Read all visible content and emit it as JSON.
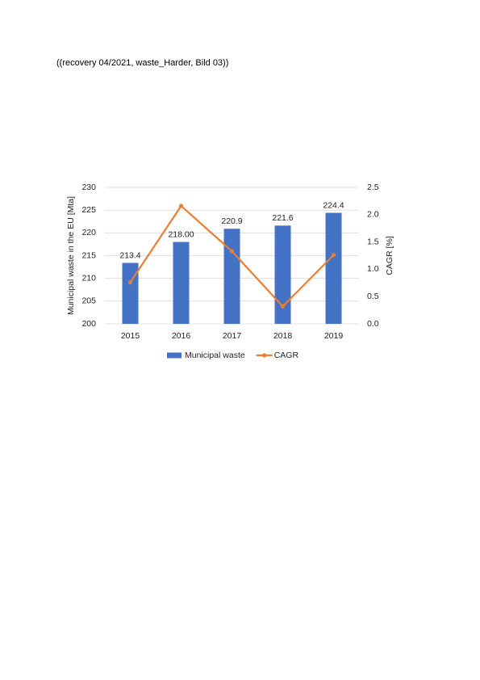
{
  "caption": "((recovery 04/2021, waste_Harder, Bild 03))",
  "chart_data": {
    "type": "combo",
    "y_label": "Municipal waste in the EU [Mta]",
    "y2_label": "CAGR [%]",
    "categories": [
      "2015",
      "2016",
      "2017",
      "2018",
      "2019"
    ],
    "series": [
      {
        "name": "Municipal waste",
        "type": "bar",
        "color": "#4472c4",
        "values": [
          213.4,
          218.0,
          220.9,
          221.6,
          224.4
        ],
        "value_labels": [
          "213.4",
          "218.00",
          "220.9",
          "221.6",
          "224.4"
        ]
      },
      {
        "name": "CAGR",
        "type": "line",
        "axis": "y2",
        "color": "#ed7d31",
        "values": [
          0.76,
          2.16,
          1.33,
          0.32,
          1.26
        ]
      }
    ],
    "ylim": [
      200,
      230
    ],
    "yticks": [
      200,
      205,
      210,
      215,
      220,
      225,
      230
    ],
    "y2lim": [
      0,
      2.5
    ],
    "y2ticks": [
      {
        "value": 0,
        "label": "0.0"
      },
      0.5,
      {
        "value": 1,
        "label": "1.0"
      },
      1.5,
      {
        "value": 2,
        "label": "2.0"
      },
      2.5
    ],
    "grid": true,
    "legend": "bottom"
  }
}
